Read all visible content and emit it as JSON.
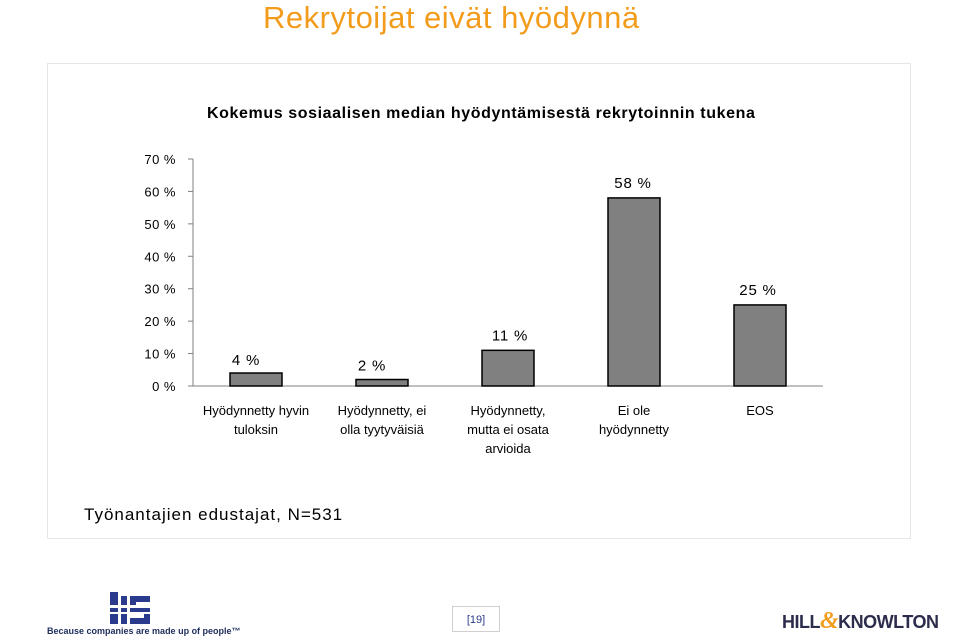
{
  "page": {
    "title": "Rekrytoijat eivät hyödynnä",
    "page_number": "[19]",
    "slogan": "Because companies are made up of people™",
    "logo_left": "MS-logo-icon",
    "logo_right_a": "HILL",
    "logo_right_amp": "&",
    "logo_right_b": "KNOWLTON"
  },
  "colors": {
    "title": "#f39c1c",
    "bar_fill": "#808080",
    "bar_stroke": "#000000"
  },
  "chart_data": {
    "type": "bar",
    "title": "Kokemus sosiaalisen median hyödyntämisestä rekrytoinnin tukena",
    "note": "Työnantajien edustajat, N=531",
    "categories": [
      [
        "Hyödynnetty hyvin",
        "tuloksin"
      ],
      [
        "Hyödynnetty, ei",
        "olla tyytyväisiä"
      ],
      [
        "Hyödynnetty,",
        "mutta ei osata",
        "arvioida"
      ],
      [
        "Ei ole",
        "hyödynnetty"
      ],
      [
        "EOS"
      ]
    ],
    "values": [
      4,
      2,
      11,
      58,
      25
    ],
    "data_labels": [
      "4 %",
      "2 %",
      "11 %",
      "58 %",
      "25 %"
    ],
    "y_ticks": [
      0,
      10,
      20,
      30,
      40,
      50,
      60,
      70
    ],
    "y_tick_labels": [
      "0 %",
      "10 %",
      "20 %",
      "30 %",
      "40 %",
      "50 %",
      "60 %",
      "70 %"
    ],
    "ylim": [
      0,
      70
    ],
    "grid": false,
    "legend": "none"
  }
}
